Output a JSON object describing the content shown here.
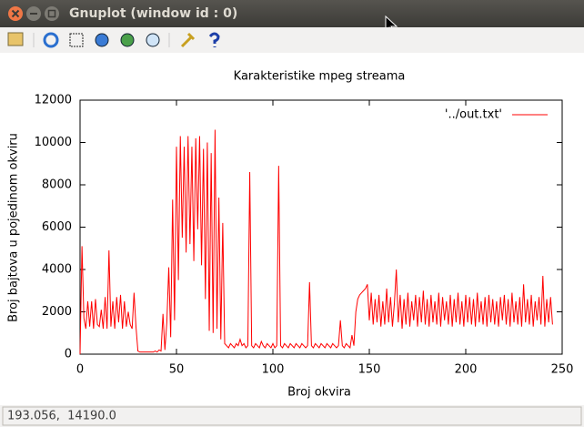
{
  "window": {
    "title": "Gnuplot (window id : 0)"
  },
  "status_bar": {
    "text": "193.056,  14190.0"
  },
  "chart_data": {
    "type": "line",
    "title": "Karakteristike mpeg streama",
    "x_label": "Broj okvira",
    "y_label": "Broj bajtova u pojedinom okviru",
    "x": [
      0,
      1,
      2,
      3,
      4,
      5,
      6,
      7,
      8,
      9,
      10,
      11,
      12,
      13,
      14,
      15,
      16,
      17,
      18,
      19,
      20,
      21,
      22,
      23,
      24,
      25,
      26,
      27,
      28,
      29,
      30,
      31,
      32,
      33,
      34,
      35,
      36,
      37,
      38,
      39,
      40,
      41,
      42,
      43,
      44,
      45,
      46,
      47,
      48,
      49,
      50,
      51,
      52,
      53,
      54,
      55,
      56,
      57,
      58,
      59,
      60,
      61,
      62,
      63,
      64,
      65,
      66,
      67,
      68,
      69,
      70,
      71,
      72,
      73,
      74,
      75,
      76,
      77,
      78,
      79,
      80,
      81,
      82,
      83,
      84,
      85,
      86,
      87,
      88,
      89,
      90,
      91,
      92,
      93,
      94,
      95,
      96,
      97,
      98,
      99,
      100,
      101,
      102,
      103,
      104,
      105,
      106,
      107,
      108,
      109,
      110,
      111,
      112,
      113,
      114,
      115,
      116,
      117,
      118,
      119,
      120,
      121,
      122,
      123,
      124,
      125,
      126,
      127,
      128,
      129,
      130,
      131,
      132,
      133,
      134,
      135,
      136,
      137,
      138,
      139,
      140,
      141,
      142,
      143,
      144,
      145,
      146,
      147,
      148,
      149,
      150,
      151,
      152,
      153,
      154,
      155,
      156,
      157,
      158,
      159,
      160,
      161,
      162,
      163,
      164,
      165,
      166,
      167,
      168,
      169,
      170,
      171,
      172,
      173,
      174,
      175,
      176,
      177,
      178,
      179,
      180,
      181,
      182,
      183,
      184,
      185,
      186,
      187,
      188,
      189,
      190,
      191,
      192,
      193,
      194,
      195,
      196,
      197,
      198,
      199,
      200,
      201,
      202,
      203,
      204,
      205,
      206,
      207,
      208,
      209,
      210,
      211,
      212,
      213,
      214,
      215,
      216,
      217,
      218,
      219,
      220,
      221,
      222,
      223,
      224,
      225,
      226,
      227,
      228,
      229,
      230,
      231,
      232,
      233,
      234,
      235,
      236,
      237,
      238,
      239,
      240,
      241,
      242,
      243,
      244,
      245
    ],
    "series": [
      {
        "name": "'../out.txt'",
        "color": "#ff0000",
        "values": [
          0,
          5100,
          1700,
          1200,
          2500,
          1300,
          2500,
          1200,
          2600,
          1400,
          1300,
          2100,
          1200,
          2700,
          1200,
          4900,
          1300,
          2500,
          1200,
          2700,
          1500,
          2800,
          1200,
          2500,
          1300,
          2000,
          1400,
          1200,
          2900,
          1300,
          150,
          100,
          100,
          100,
          100,
          100,
          100,
          100,
          100,
          150,
          100,
          200,
          150,
          1900,
          200,
          1500,
          4100,
          800,
          7300,
          1600,
          9800,
          3500,
          10300,
          5500,
          9800,
          4800,
          10300,
          5200,
          9800,
          4400,
          10200,
          5900,
          10300,
          4200,
          9700,
          2600,
          10000,
          1100,
          9500,
          1000,
          10600,
          1200,
          7400,
          700,
          6200,
          500,
          400,
          300,
          500,
          400,
          300,
          500,
          400,
          700,
          400,
          500,
          300,
          400,
          8600,
          400,
          300,
          500,
          400,
          300,
          600,
          400,
          300,
          500,
          400,
          300,
          500,
          300,
          400,
          8900,
          400,
          300,
          500,
          400,
          300,
          500,
          400,
          300,
          500,
          400,
          300,
          500,
          400,
          300,
          400,
          3400,
          400,
          300,
          500,
          400,
          300,
          500,
          400,
          300,
          500,
          400,
          300,
          500,
          400,
          300,
          400,
          1600,
          400,
          300,
          500,
          400,
          300,
          900,
          400,
          2000,
          2600,
          2800,
          2900,
          3000,
          3100,
          3300,
          1600,
          2900,
          1400,
          2600,
          1500,
          2800,
          1300,
          2500,
          1400,
          3100,
          1500,
          2700,
          1300,
          2400,
          4000,
          1500,
          2800,
          1200,
          2600,
          1400,
          2900,
          1300,
          2500,
          1600,
          2800,
          1300,
          2700,
          1500,
          3000,
          1400,
          2600,
          1300,
          2800,
          1500,
          2500,
          1400,
          2900,
          1300,
          2700,
          1600,
          2500,
          1400,
          2800,
          1300,
          2600,
          1500,
          2900,
          1400,
          2500,
          1300,
          2800,
          1500,
          2700,
          1400,
          2600,
          1300,
          2900,
          1500,
          2500,
          1400,
          2700,
          1300,
          2800,
          1500,
          2600,
          1400,
          2500,
          1300,
          2700,
          1600,
          2800,
          1400,
          2600,
          1300,
          2900,
          1500,
          2500,
          1400,
          2700,
          1300,
          3300,
          1500,
          2600,
          1400,
          2800,
          1300,
          2500,
          1600,
          2700,
          1400,
          3700,
          1300,
          2600,
          1500,
          2700,
          1400
        ]
      }
    ],
    "xlim": [
      0,
      250
    ],
    "xticks": [
      0,
      50,
      100,
      150,
      200,
      250
    ],
    "ylim": [
      0,
      12000
    ],
    "yticks": [
      0,
      2000,
      4000,
      6000,
      8000,
      10000,
      12000
    ],
    "grid": false,
    "legend": "upper right"
  }
}
